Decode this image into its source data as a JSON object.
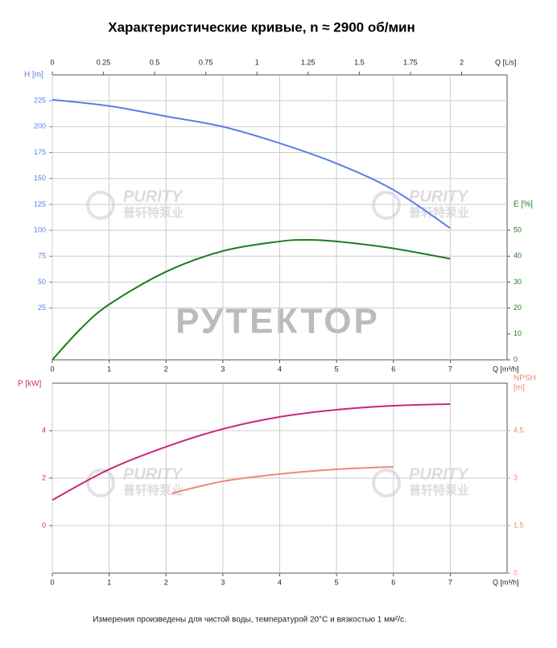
{
  "title": "Характеристические кривые, n ≈ 2900 об/мин",
  "note": "Измерения произведены для чистой воды, температурой 20°C и вязкостью 1 мм²/с.",
  "watermarks": [
    "PURITY",
    "普轩特泵业",
    "РУТЕКТОР"
  ],
  "chart_data": [
    {
      "type": "line",
      "xlabel": "Q [m³/h]",
      "xlim": [
        0,
        8
      ],
      "xticks": [
        0,
        1,
        2,
        3,
        4,
        5,
        6,
        7
      ],
      "x2label": "Q [L/s]",
      "x2lim": [
        0,
        2.2222
      ],
      "x2ticks": [
        0,
        0.25,
        0.5,
        0.75,
        1,
        1.25,
        1.5,
        1.75,
        2
      ],
      "ylabel": "H [m]",
      "ylim": [
        -25,
        250
      ],
      "yticks": [
        25,
        50,
        75,
        100,
        125,
        150,
        175,
        200,
        225
      ],
      "y2label": "E [%]",
      "y2lim": [
        0,
        110
      ],
      "y2ticks": [
        0,
        10,
        20,
        30,
        40,
        50
      ],
      "grid": true,
      "series": [
        {
          "color": "#5b7fe8",
          "x": [
            0,
            1,
            2,
            3,
            4,
            5,
            6,
            7
          ],
          "values": [
            226,
            220,
            210,
            200,
            184,
            164.5,
            139,
            102
          ]
        },
        {
          "color": "#1f7a1f",
          "axis": "y2",
          "x": [
            0,
            0.5,
            1,
            2,
            3,
            4,
            4.5,
            5,
            6,
            7
          ],
          "values": [
            0,
            12,
            21.4,
            34,
            42,
            45.7,
            46.3,
            45.7,
            43,
            39
          ]
        }
      ]
    },
    {
      "type": "line",
      "xlabel": "Q [m³/h]",
      "xlim": [
        0,
        8
      ],
      "xticks": [
        0,
        1,
        2,
        3,
        4,
        5,
        6,
        7
      ],
      "ylabel": "P [kW]",
      "ylim": [
        -2,
        6
      ],
      "yticks": [
        0,
        2,
        4
      ],
      "y2label": [
        "NPSH",
        "[m]"
      ],
      "y2lim": [
        0,
        6
      ],
      "y2ticks": [
        0,
        1.5,
        3,
        4.5
      ],
      "grid": true,
      "series": [
        {
          "color": "#c8287a",
          "x": [
            0,
            1,
            2,
            3,
            4,
            5,
            6,
            7
          ],
          "values": [
            1.08,
            2.37,
            3.32,
            4.07,
            4.58,
            4.88,
            5.05,
            5.12
          ]
        },
        {
          "color": "#f08878",
          "axis": "y2",
          "x": [
            2.1,
            3,
            4,
            5,
            6
          ],
          "values": [
            2.52,
            2.9,
            3.13,
            3.28,
            3.36
          ]
        }
      ]
    }
  ]
}
